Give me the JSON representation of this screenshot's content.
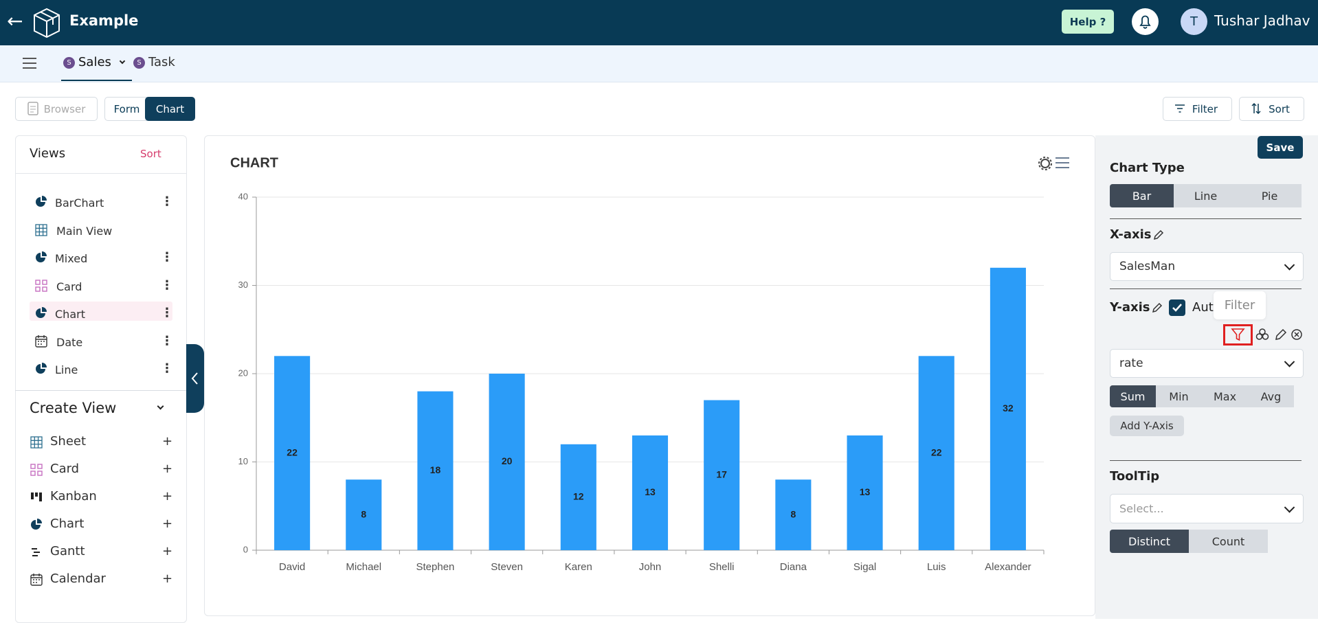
{
  "header": {
    "app": "Example",
    "help": "Help ?",
    "avatar": "T",
    "user": "Tushar Jadhav"
  },
  "tabs": [
    {
      "badge": "S",
      "label": "Sales"
    },
    {
      "badge": "S",
      "label": "Task"
    }
  ],
  "toolbar": {
    "browser": "Browser",
    "form": "Form",
    "chart": "Chart",
    "filter": "Filter",
    "sort": "Sort"
  },
  "views": {
    "title": "Views",
    "sort": "Sort",
    "items": [
      "BarChart",
      "Main View",
      "Mixed",
      "Card",
      "Chart",
      "Date",
      "Line"
    ]
  },
  "create_view": {
    "title": "Create View",
    "items": [
      "Sheet",
      "Card",
      "Kanban",
      "Chart",
      "Gantt",
      "Calendar"
    ],
    "add": "+"
  },
  "settings": {
    "save": "Save",
    "chart_type": "Chart Type",
    "chart_types": [
      "Bar",
      "Line",
      "Pie"
    ],
    "x_axis": "X-axis",
    "x_field": "SalesMan",
    "y_axis": "Y-axis",
    "auto": "Auto",
    "tooltip_popup": "Filter",
    "y_field": "rate",
    "aggregations": [
      "Sum",
      "Min",
      "Max",
      "Avg"
    ],
    "add_y": "Add Y-Axis",
    "tooltip": "ToolTip",
    "tooltip_placeholder": "Select...",
    "tooltip_modes": [
      "Distinct",
      "Count"
    ]
  },
  "chart_data": {
    "type": "bar",
    "title": "CHART",
    "categories": [
      "David",
      "Michael",
      "Stephen",
      "Steven",
      "Karen",
      "John",
      "Shelli",
      "Diana",
      "Sigal",
      "Luis",
      "Alexander"
    ],
    "values": [
      22,
      8,
      18,
      20,
      12,
      13,
      17,
      8,
      13,
      22,
      32
    ],
    "color": "#2b9cf8",
    "ylim": [
      0,
      40
    ],
    "yticks": [
      0,
      10,
      20,
      30,
      40
    ],
    "grid": true
  }
}
